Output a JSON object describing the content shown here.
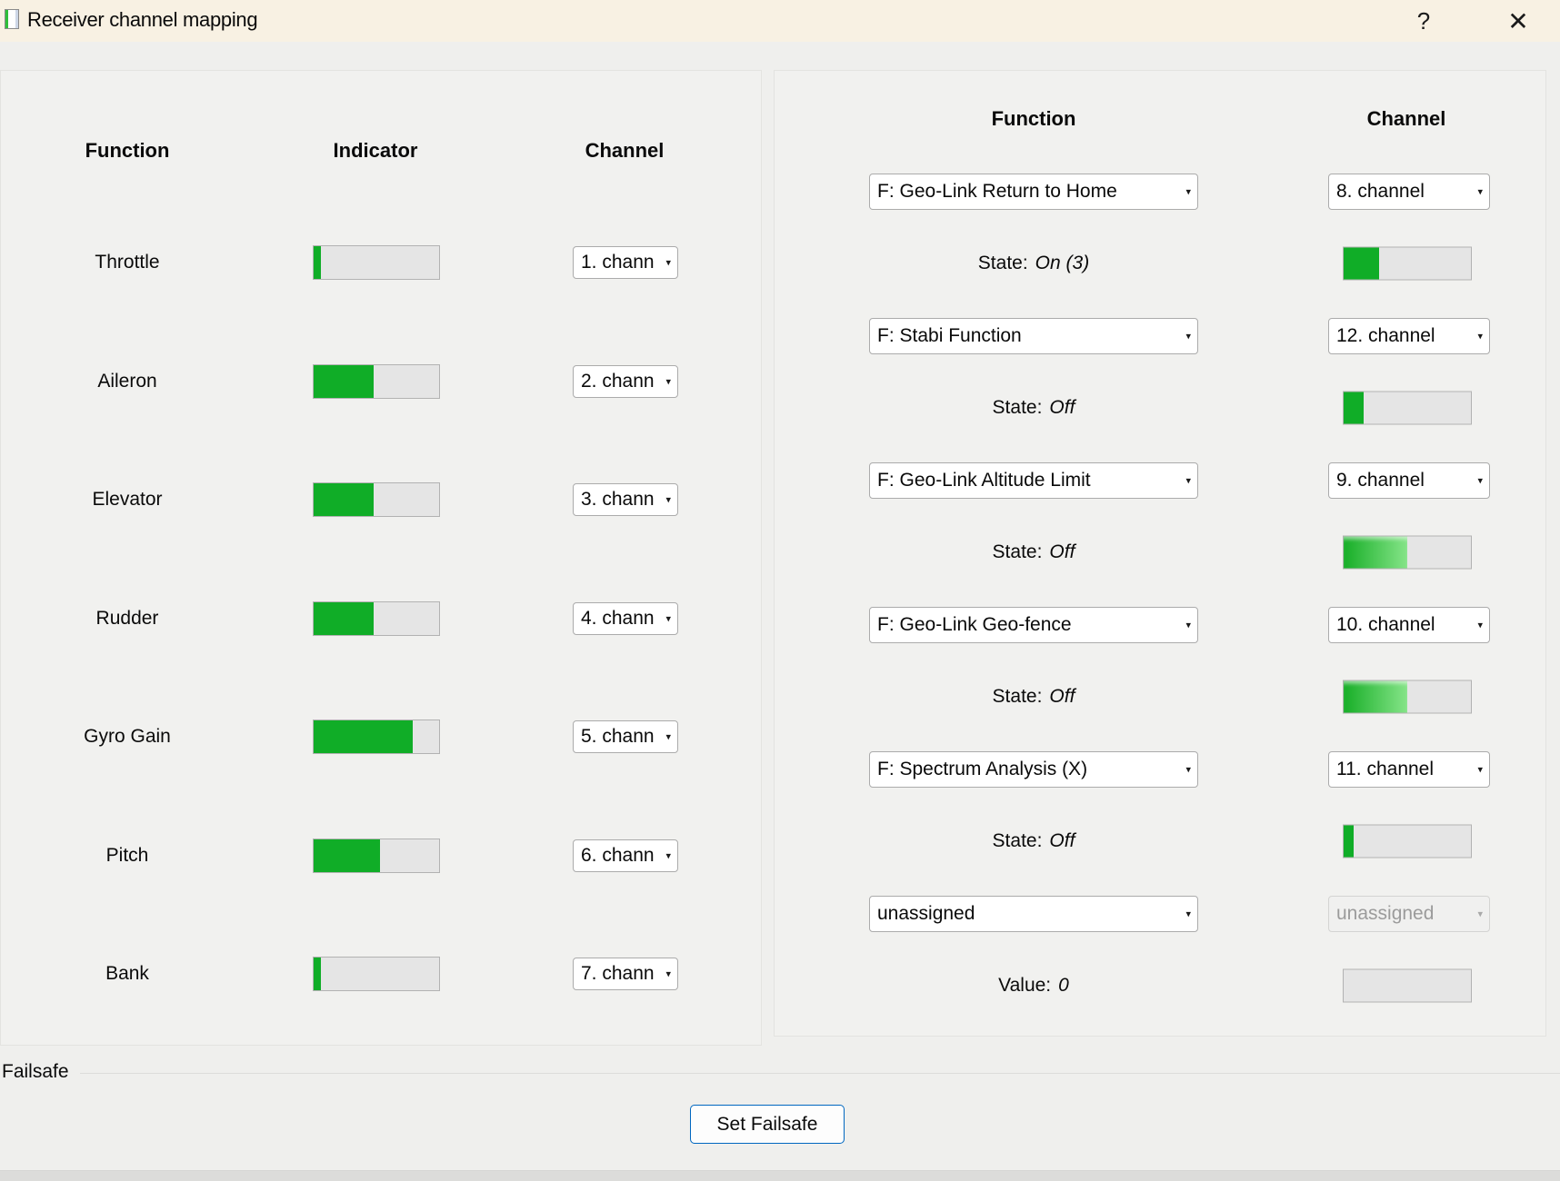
{
  "window": {
    "title": "Receiver channel mapping",
    "help_label": "?",
    "close_label": "✕"
  },
  "left_panel": {
    "headers": {
      "function": "Function",
      "indicator": "Indicator",
      "channel": "Channel"
    },
    "rows": [
      {
        "function": "Throttle",
        "fill": 6,
        "channel": "1. chann"
      },
      {
        "function": "Aileron",
        "fill": 48,
        "channel": "2. chann"
      },
      {
        "function": "Elevator",
        "fill": 48,
        "channel": "3. chann"
      },
      {
        "function": "Rudder",
        "fill": 48,
        "channel": "4. chann"
      },
      {
        "function": "Gyro Gain",
        "fill": 79,
        "channel": "5. chann"
      },
      {
        "function": "Pitch",
        "fill": 53,
        "channel": "6. chann"
      },
      {
        "function": "Bank",
        "fill": 6,
        "channel": "7. chann"
      }
    ]
  },
  "right_panel": {
    "headers": {
      "function": "Function",
      "channel": "Channel"
    },
    "rows": [
      {
        "function": "F: Geo-Link Return to Home",
        "channel": "8. channel",
        "state_label": "State:",
        "state": "On (3)",
        "fill": 28,
        "bar_style": "solid",
        "channel_state": "enabled"
      },
      {
        "function": "F: Stabi Function",
        "channel": "12. channel",
        "state_label": "State:",
        "state": "Off",
        "fill": 16,
        "bar_style": "solid",
        "channel_state": "enabled"
      },
      {
        "function": "F: Geo-Link Altitude Limit",
        "channel": "9. channel",
        "state_label": "State:",
        "state": "Off",
        "fill": 50,
        "bar_style": "gradient",
        "channel_state": "enabled"
      },
      {
        "function": "F: Geo-Link Geo-fence",
        "channel": "10. channel",
        "state_label": "State:",
        "state": "Off",
        "fill": 50,
        "bar_style": "gradient",
        "channel_state": "enabled"
      },
      {
        "function": "F: Spectrum Analysis (X)",
        "channel": "11. channel",
        "state_label": "State:",
        "state": "Off",
        "fill": 8,
        "bar_style": "solid",
        "channel_state": "enabled"
      },
      {
        "function": "unassigned",
        "channel": "unassigned",
        "state_label": "Value:",
        "state": "0",
        "fill": 0,
        "bar_style": "solid",
        "channel_state": "disabled"
      }
    ]
  },
  "failsafe": {
    "label": "Failsafe",
    "button_label": "Set Failsafe"
  },
  "colors": {
    "titlebar_bg": "#f8f1e3",
    "window_bg": "#efefed",
    "indicator_green": "#10ad27",
    "indicator_gradient_start": "#17ae27",
    "indicator_gradient_end": "#85e488",
    "bar_track": "#e5e5e5",
    "bar_border": "#b2b2b2",
    "button_border_blue": "#0067c0"
  }
}
